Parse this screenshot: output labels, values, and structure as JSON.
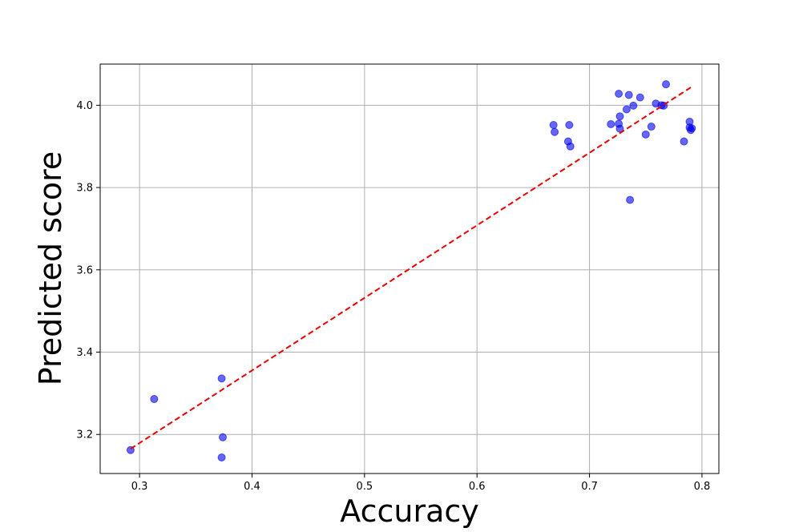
{
  "chart_data": {
    "type": "scatter",
    "title": "",
    "xlabel": "Accuracy",
    "ylabel": "Predicted score",
    "xlim": [
      0.265,
      0.815
    ],
    "ylim": [
      3.105,
      4.1
    ],
    "x_ticks": [
      0.3,
      0.4,
      0.5,
      0.6,
      0.7,
      0.8
    ],
    "x_tick_labels": [
      "0.3",
      "0.4",
      "0.5",
      "0.6",
      "0.7",
      "0.8"
    ],
    "y_ticks": [
      3.2,
      3.4,
      3.6,
      3.8,
      4.0
    ],
    "y_tick_labels": [
      "3.2",
      "3.4",
      "3.6",
      "3.8",
      "4.0"
    ],
    "grid": true,
    "series": [
      {
        "marker_color": "#0000ee",
        "points": [
          {
            "x": 0.292,
            "y": 3.162
          },
          {
            "x": 0.313,
            "y": 3.286
          },
          {
            "x": 0.373,
            "y": 3.336
          },
          {
            "x": 0.374,
            "y": 3.193
          },
          {
            "x": 0.373,
            "y": 3.144
          },
          {
            "x": 0.668,
            "y": 3.952
          },
          {
            "x": 0.669,
            "y": 3.935
          },
          {
            "x": 0.682,
            "y": 3.952
          },
          {
            "x": 0.681,
            "y": 3.912
          },
          {
            "x": 0.683,
            "y": 3.9
          },
          {
            "x": 0.719,
            "y": 3.954
          },
          {
            "x": 0.726,
            "y": 4.028
          },
          {
            "x": 0.727,
            "y": 3.973
          },
          {
            "x": 0.726,
            "y": 3.955
          },
          {
            "x": 0.727,
            "y": 3.943
          },
          {
            "x": 0.733,
            "y": 3.99
          },
          {
            "x": 0.735,
            "y": 4.025
          },
          {
            "x": 0.739,
            "y": 3.999
          },
          {
            "x": 0.745,
            "y": 4.019
          },
          {
            "x": 0.736,
            "y": 3.77
          },
          {
            "x": 0.75,
            "y": 3.929
          },
          {
            "x": 0.755,
            "y": 3.948
          },
          {
            "x": 0.759,
            "y": 4.004
          },
          {
            "x": 0.764,
            "y": 4.0
          },
          {
            "x": 0.766,
            "y": 3.999
          },
          {
            "x": 0.768,
            "y": 4.051
          },
          {
            "x": 0.784,
            "y": 3.912
          },
          {
            "x": 0.789,
            "y": 3.96
          },
          {
            "x": 0.789,
            "y": 3.946
          },
          {
            "x": 0.79,
            "y": 3.94
          },
          {
            "x": 0.791,
            "y": 3.944
          }
        ]
      }
    ],
    "trend_line": {
      "style": "dashed",
      "color": "#ee0000",
      "x": [
        0.292,
        0.791
      ],
      "y": [
        3.165,
        4.045
      ]
    }
  }
}
